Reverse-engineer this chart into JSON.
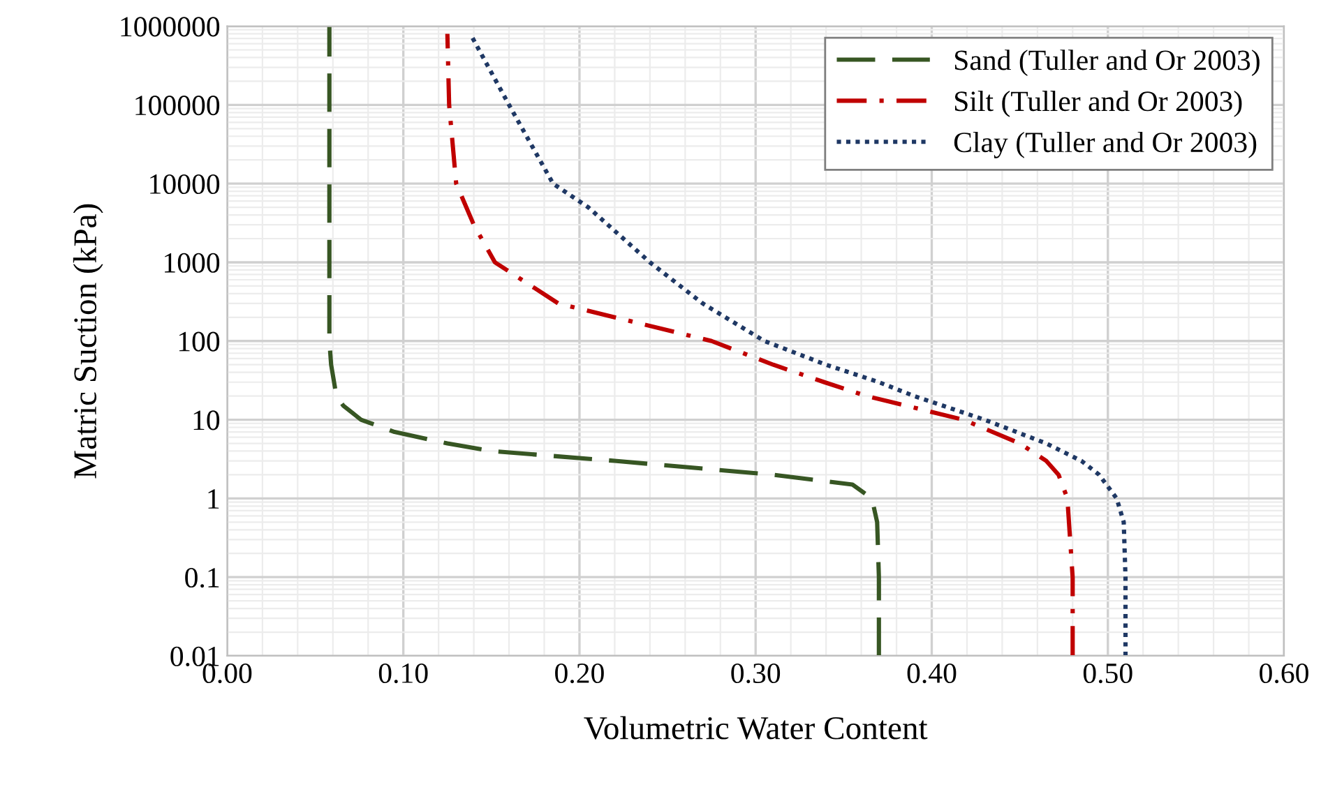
{
  "chart_data": {
    "type": "line",
    "xlabel": "Volumetric Water Content",
    "ylabel": "Matric Suction (kPa)",
    "log": "y",
    "grid": true,
    "legend": "top right",
    "marker": "none",
    "xlim": [
      0,
      0.6
    ],
    "xticks": [
      {
        "value": 0,
        "label": "0.00"
      },
      {
        "value": 0.1,
        "label": "0.10"
      },
      {
        "value": 0.2,
        "label": "0.20"
      },
      {
        "value": 0.3,
        "label": "0.30"
      },
      {
        "value": 0.4,
        "label": "0.40"
      },
      {
        "value": 0.5,
        "label": "0.50"
      },
      {
        "value": 0.6,
        "label": "0.60"
      }
    ],
    "ylim": [
      0.01,
      1000000
    ],
    "yticks": [
      0.01,
      0.1,
      1,
      10,
      100,
      1000,
      10000,
      100000,
      1000000
    ],
    "series": [
      {
        "name": "Sand (Tuller and Or 2003)",
        "color": "#375623",
        "line_style": "dashed",
        "x": [
          0.37,
          0.37,
          0.369,
          0.366,
          0.355,
          0.31,
          0.22,
          0.15,
          0.125,
          0.095,
          0.076,
          0.066,
          0.062,
          0.059,
          0.058,
          0.058
        ],
        "values": [
          0.01,
          0.1,
          0.5,
          1,
          1.5,
          2,
          3,
          4,
          5,
          7,
          10,
          15,
          20,
          50,
          100,
          1000000
        ]
      },
      {
        "name": "Silt (Tuller and Or 2003)",
        "color": "#c00000",
        "line_style": "dashdot",
        "x": [
          0.48,
          0.48,
          0.477,
          0.472,
          0.465,
          0.45,
          0.418,
          0.363,
          0.339,
          0.31,
          0.275,
          0.188,
          0.152,
          0.14,
          0.13,
          0.126,
          0.125
        ],
        "values": [
          0.01,
          0.1,
          1,
          2,
          3,
          5,
          10,
          20,
          30,
          50,
          100,
          300,
          1000,
          3000,
          10000,
          100000,
          800000
        ]
      },
      {
        "name": "Clay (Tuller and Or 2003)",
        "color": "#1f3864",
        "line_style": "dotted",
        "x": [
          0.51,
          0.51,
          0.509,
          0.505,
          0.495,
          0.485,
          0.465,
          0.43,
          0.39,
          0.37,
          0.34,
          0.305,
          0.27,
          0.24,
          0.205,
          0.185,
          0.16,
          0.138
        ],
        "values": [
          0.01,
          0.1,
          0.5,
          1,
          2,
          3,
          5,
          10,
          20,
          30,
          50,
          100,
          300,
          1000,
          5000,
          10000,
          100000,
          800000
        ]
      }
    ]
  }
}
